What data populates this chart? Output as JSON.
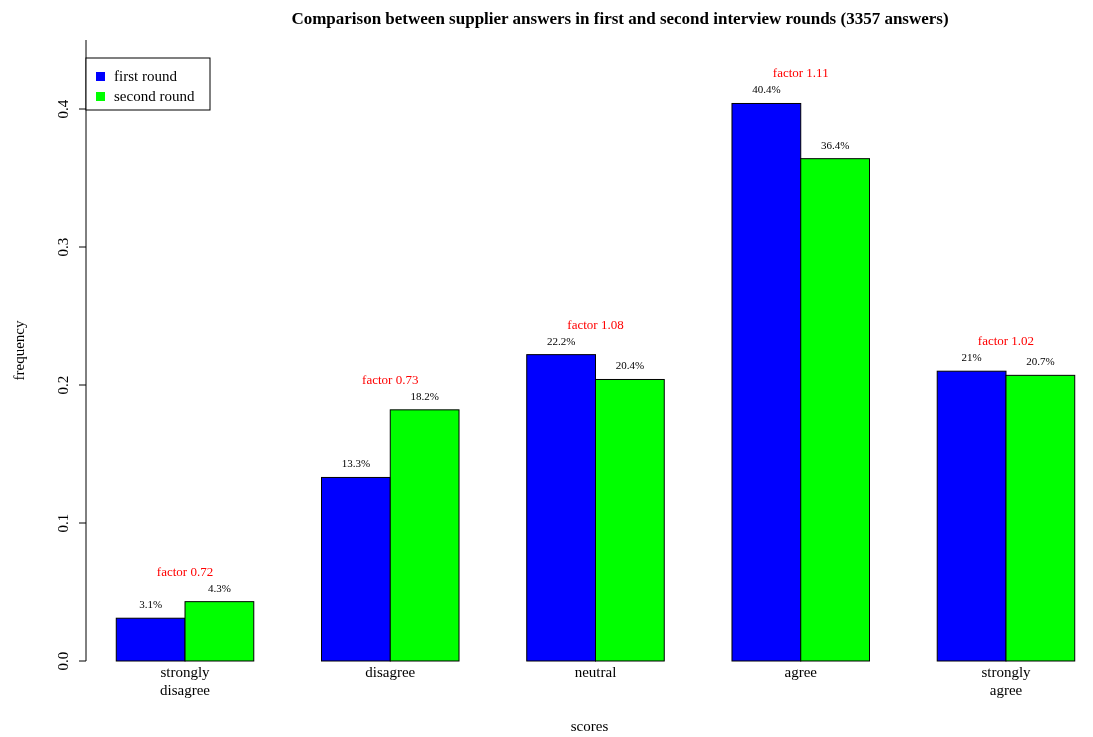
{
  "chart_data": {
    "type": "bar",
    "title": "Comparison between supplier answers in first and second interview rounds (3357 answers)",
    "xlabel": "scores",
    "ylabel": "frequency",
    "categories": [
      "strongly\ndisagree",
      "disagree",
      "neutral",
      "agree",
      "strongly\nagree"
    ],
    "series": [
      {
        "name": "first round",
        "color": "#0000ff",
        "values": [
          0.031,
          0.133,
          0.222,
          0.404,
          0.21
        ],
        "value_labels": [
          "3.1%",
          "13.3%",
          "22.2%",
          "40.4%",
          "21%"
        ]
      },
      {
        "name": "second round",
        "color": "#00ff00",
        "values": [
          0.043,
          0.182,
          0.204,
          0.364,
          0.207
        ],
        "value_labels": [
          "4.3%",
          "18.2%",
          "20.4%",
          "36.4%",
          "20.7%"
        ]
      }
    ],
    "ylim": [
      0,
      0.45
    ],
    "yticks": [
      {
        "value": 0,
        "label": "0.0"
      },
      0.1,
      0.2,
      0.3,
      0.4
    ],
    "annotations": [
      "factor 0.72",
      "factor 0.73",
      "factor 1.08",
      "factor 1.11",
      "factor 1.02"
    ],
    "legend": "top left",
    "grid": false
  }
}
